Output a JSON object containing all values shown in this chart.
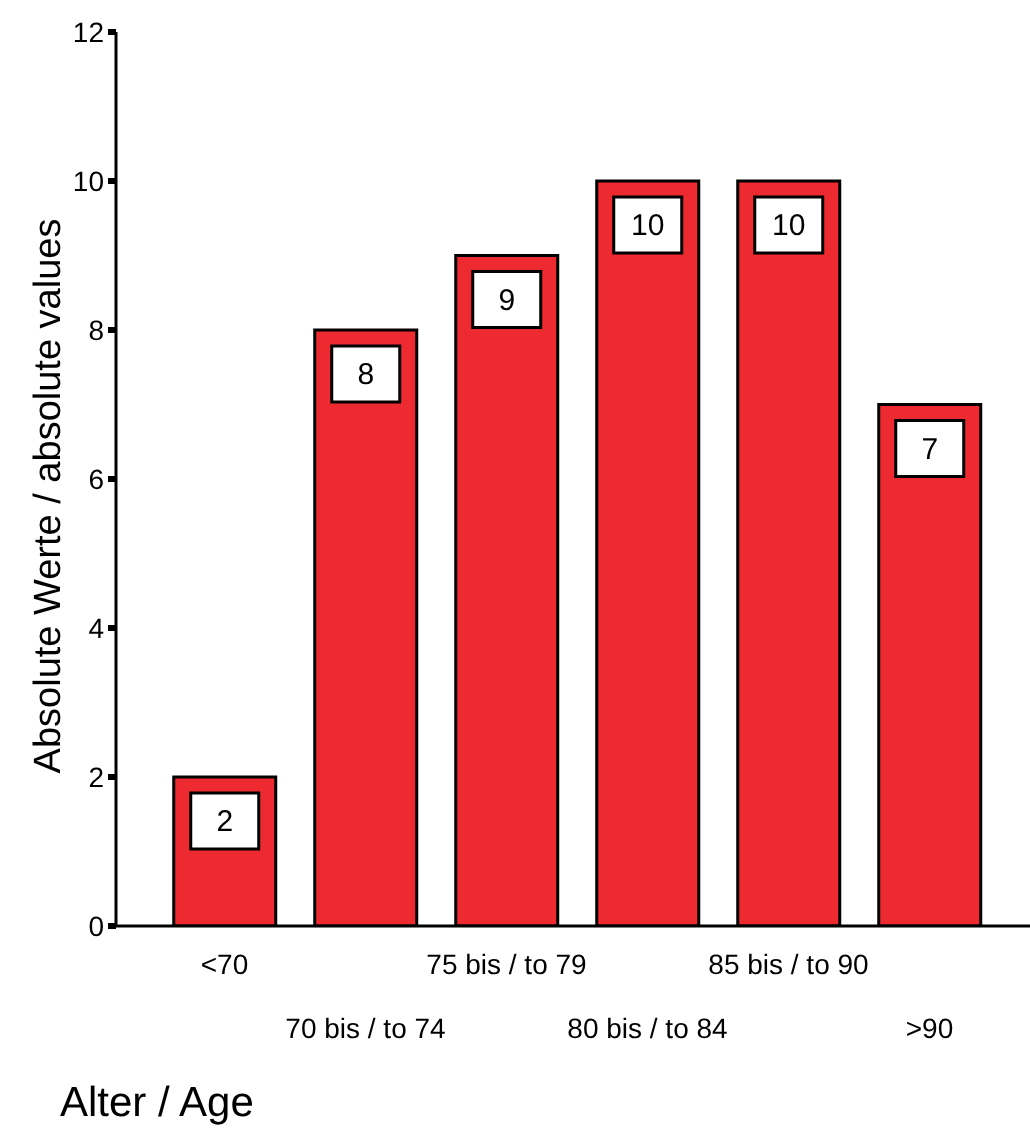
{
  "chart_data": {
    "type": "bar",
    "xlabel": "Alter / Age",
    "ylabel": "Absolute Werte / absolute values",
    "categories": [
      "<70",
      "70 bis / to 74",
      "75 bis / to 79",
      "80 bis / to 84",
      "85 bis / to  90",
      ">90"
    ],
    "values": [
      2,
      8,
      9,
      10,
      10,
      7
    ],
    "color": "#ec2a30",
    "ylim": [
      0,
      12
    ],
    "yticks": [
      0,
      2,
      4,
      6,
      8,
      10,
      12
    ],
    "data_labels": true,
    "grid": false
  }
}
